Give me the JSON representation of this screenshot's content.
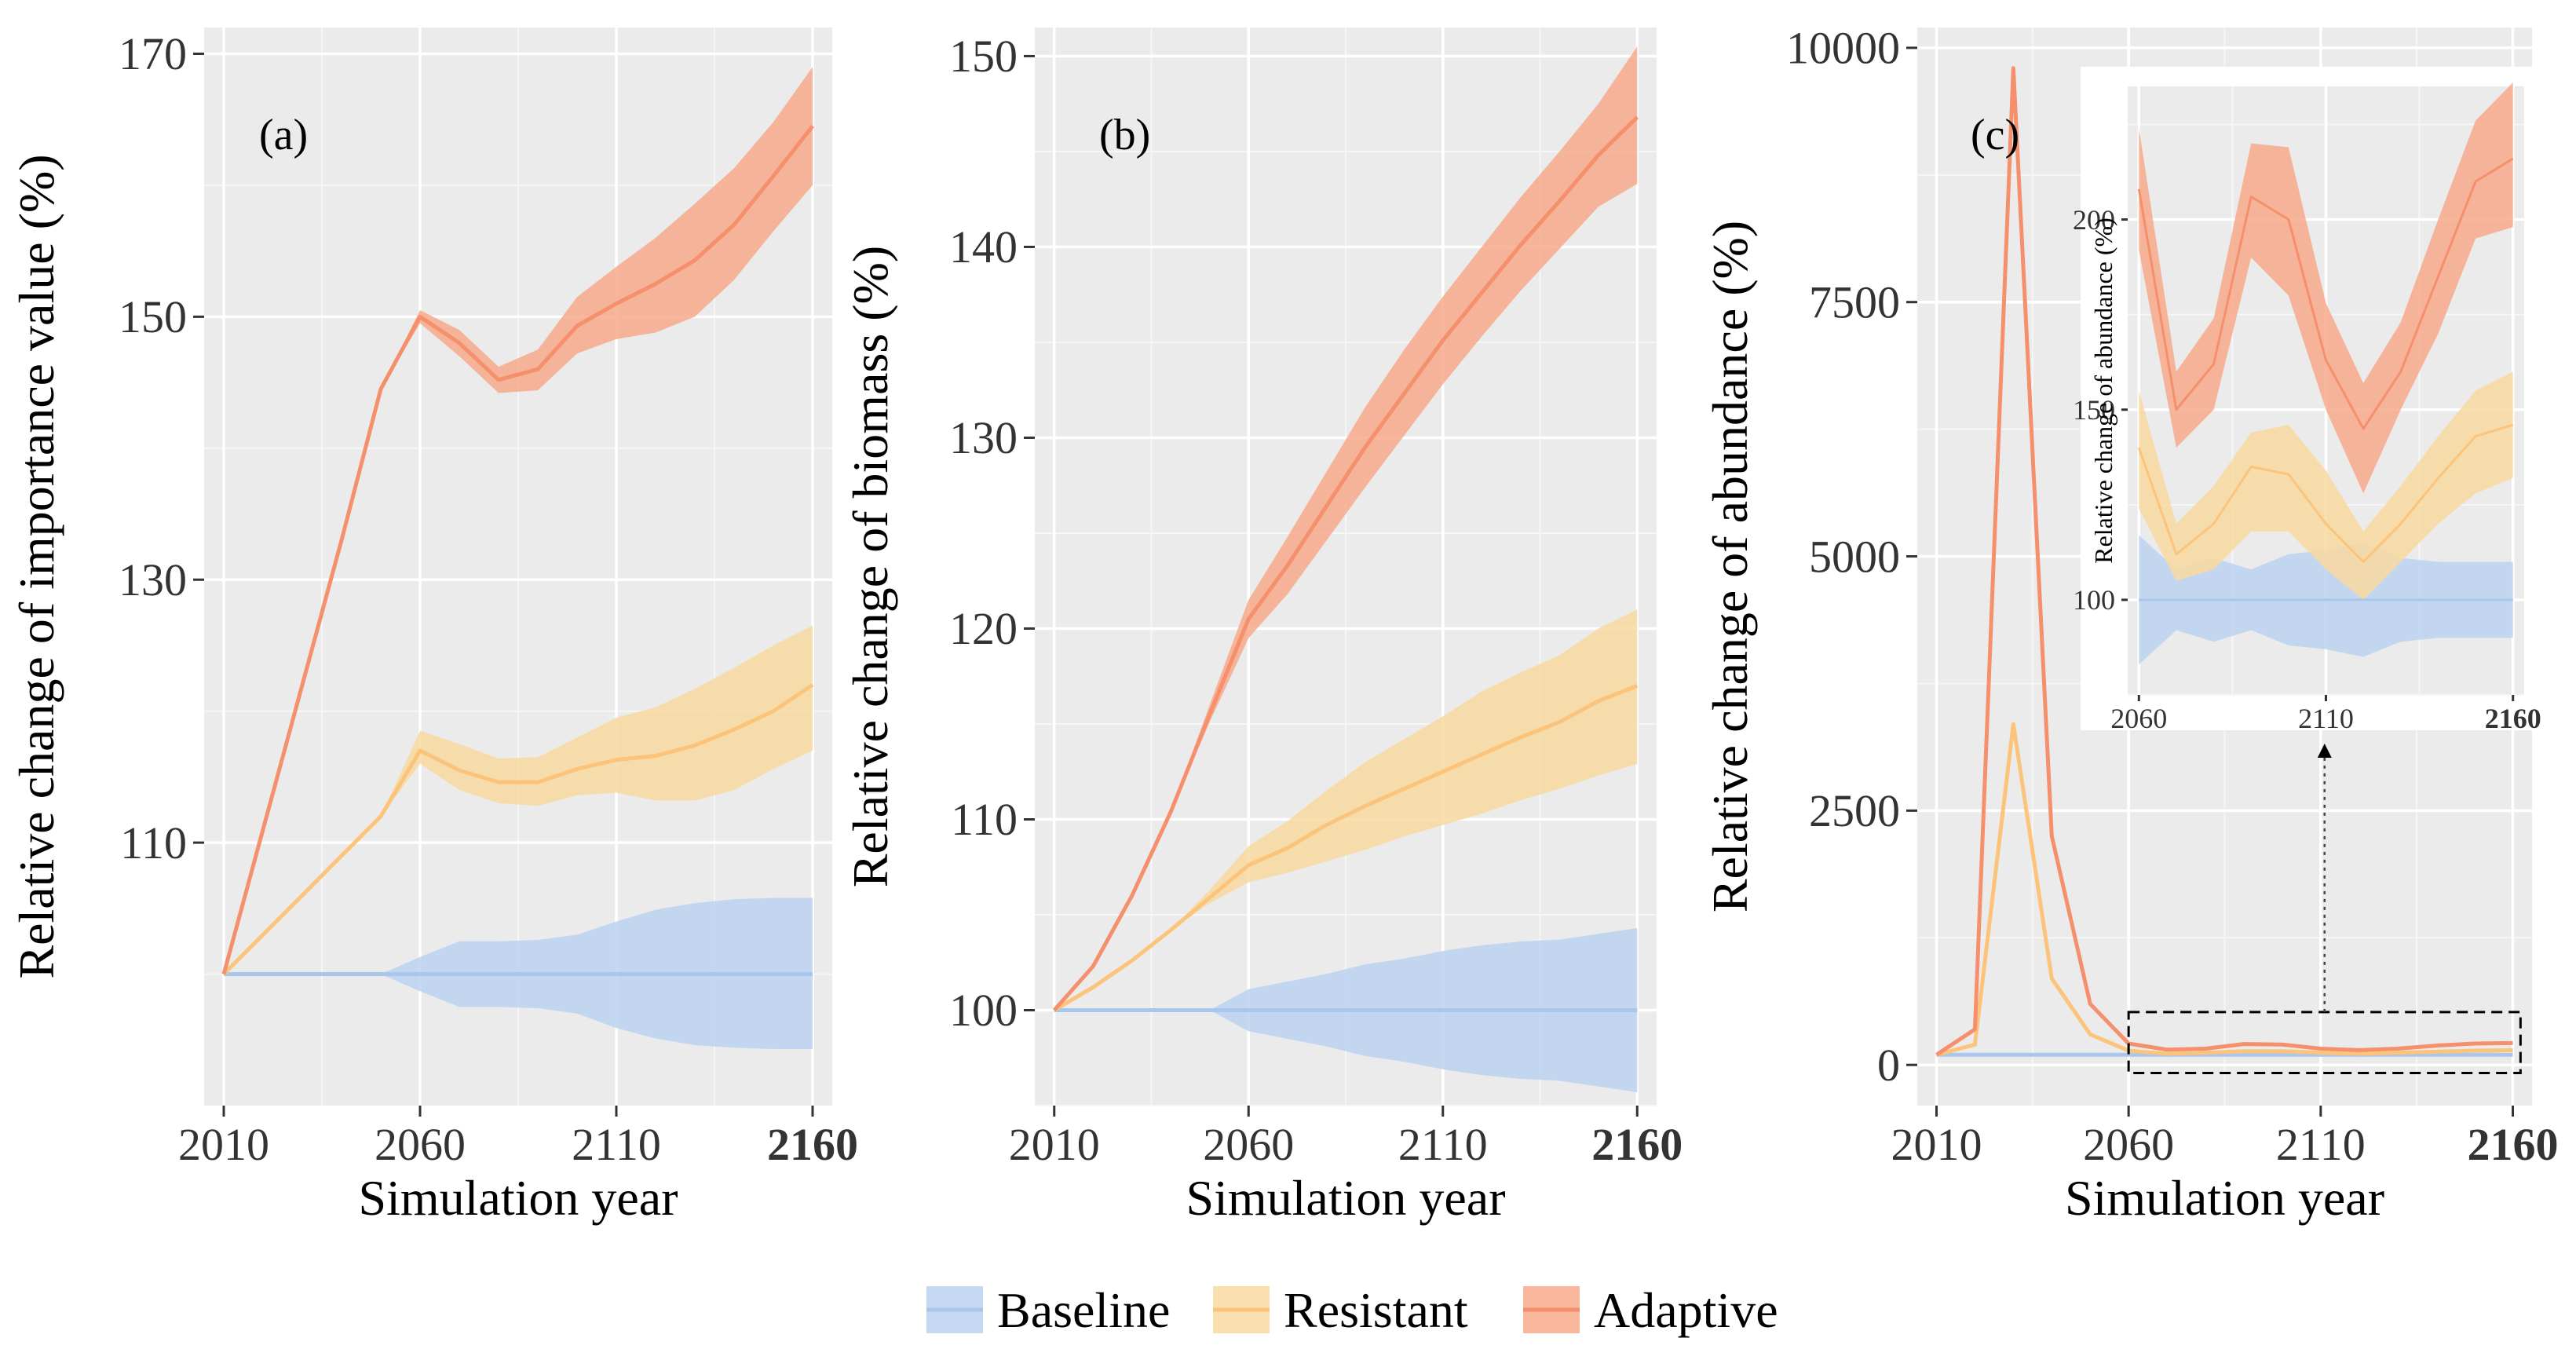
{
  "chart_data": [
    {
      "type": "line",
      "panel_label": "(a)",
      "xlabel": "Simulation year",
      "ylabel": "Relative change of importance value (%)",
      "x": [
        2010,
        2020,
        2030,
        2040,
        2050,
        2060,
        2070,
        2080,
        2090,
        2100,
        2110,
        2120,
        2130,
        2140,
        2150,
        2160
      ],
      "xlim": [
        2005,
        2165
      ],
      "ylim": [
        90,
        172
      ],
      "xticks": [
        2010,
        2060,
        2110,
        2160
      ],
      "yticks": [
        110,
        130,
        150,
        170
      ],
      "series": [
        {
          "name": "Baseline",
          "mean": [
            100,
            100,
            100,
            100,
            100,
            100,
            100,
            100,
            100,
            100,
            100,
            100,
            100,
            100,
            100,
            100
          ],
          "lower": [
            100,
            100,
            100,
            100,
            100,
            98.7,
            97.5,
            97.5,
            97.4,
            97,
            95.9,
            95.1,
            94.6,
            94.4,
            94.3,
            94.3
          ],
          "upper": [
            100,
            100,
            100,
            100,
            100,
            101.3,
            102.5,
            102.5,
            102.6,
            103,
            104,
            104.9,
            105.4,
            105.7,
            105.8,
            105.8
          ]
        },
        {
          "name": "Resistant",
          "mean": [
            100,
            103,
            106,
            109,
            112,
            117,
            115.5,
            114.6,
            114.6,
            115.6,
            116.3,
            116.6,
            117.4,
            118.6,
            120,
            122
          ],
          "lower": [
            100,
            103,
            106,
            109,
            112,
            116,
            114,
            113,
            112.8,
            113.6,
            113.8,
            113.2,
            113.2,
            114,
            115.6,
            117
          ],
          "upper": [
            100,
            103,
            106,
            109,
            112,
            118.5,
            117.5,
            116.4,
            116.5,
            118,
            119.5,
            120.3,
            121.7,
            123.3,
            125,
            126.5
          ]
        },
        {
          "name": "Adaptive",
          "mean": [
            100,
            111,
            122,
            133,
            144.5,
            150,
            148,
            145.2,
            146,
            149.3,
            151,
            152.5,
            154.3,
            157,
            160.7,
            164.5
          ],
          "lower": [
            100,
            111,
            122,
            133,
            144.5,
            149.5,
            147,
            144.2,
            144.4,
            147.2,
            148.3,
            148.8,
            150,
            152.8,
            156.5,
            160
          ],
          "upper": [
            100,
            111,
            122,
            133,
            144.5,
            150.5,
            149,
            146.2,
            147.5,
            151.5,
            153.8,
            156,
            158.6,
            161.3,
            164.8,
            169
          ]
        }
      ]
    },
    {
      "type": "line",
      "panel_label": "(b)",
      "xlabel": "Simulation year",
      "ylabel": "Relative change of biomass (%)",
      "x": [
        2010,
        2020,
        2030,
        2040,
        2050,
        2060,
        2070,
        2080,
        2090,
        2100,
        2110,
        2120,
        2130,
        2140,
        2150,
        2160
      ],
      "xlim": [
        2005,
        2165
      ],
      "ylim": [
        95,
        151.5
      ],
      "xticks": [
        2010,
        2060,
        2110,
        2160
      ],
      "yticks": [
        100,
        110,
        120,
        130,
        140,
        150
      ],
      "series": [
        {
          "name": "Baseline",
          "mean": [
            100,
            100,
            100,
            100,
            100,
            100,
            100,
            100,
            100,
            100,
            100,
            100,
            100,
            100,
            100,
            100
          ],
          "lower": [
            100,
            100,
            100,
            100,
            100,
            98.9,
            98.5,
            98.1,
            97.6,
            97.3,
            96.9,
            96.6,
            96.4,
            96.3,
            96,
            95.7
          ],
          "upper": [
            100,
            100,
            100,
            100,
            100,
            101.1,
            101.5,
            101.9,
            102.4,
            102.7,
            103.1,
            103.4,
            103.6,
            103.7,
            104,
            104.3
          ]
        },
        {
          "name": "Resistant",
          "mean": [
            100,
            101.2,
            102.6,
            104.2,
            105.9,
            107.6,
            108.5,
            109.7,
            110.7,
            111.6,
            112.5,
            113.4,
            114.3,
            115.1,
            116.2,
            117
          ],
          "lower": [
            100,
            101.2,
            102.6,
            104.2,
            105.6,
            106.7,
            107.2,
            107.8,
            108.4,
            109.1,
            109.7,
            110.3,
            111,
            111.6,
            112.3,
            112.9
          ],
          "upper": [
            100,
            101.2,
            102.6,
            104.2,
            106.3,
            108.6,
            109.9,
            111.5,
            113,
            114.2,
            115.4,
            116.7,
            117.7,
            118.6,
            120,
            121
          ]
        },
        {
          "name": "Adaptive",
          "mean": [
            100,
            102.3,
            106,
            110.4,
            115.5,
            120.5,
            123.3,
            126.4,
            129.5,
            132.3,
            135.1,
            137.6,
            140.1,
            142.4,
            144.8,
            146.8
          ],
          "lower": [
            100,
            102.3,
            106,
            110.4,
            115.1,
            119.5,
            121.8,
            124.6,
            127.4,
            130.1,
            132.8,
            135.3,
            137.7,
            139.9,
            142.1,
            143.3
          ],
          "upper": [
            100,
            102.3,
            106,
            110.4,
            116,
            121.5,
            124.8,
            128.2,
            131.6,
            134.6,
            137.4,
            140,
            142.6,
            145,
            147.5,
            150.5
          ]
        }
      ]
    },
    {
      "type": "line",
      "panel_label": "(c)",
      "xlabel": "Simulation year",
      "ylabel": "Relative change of abundance (%)",
      "x": [
        2010,
        2020,
        2030,
        2040,
        2050,
        2060,
        2070,
        2080,
        2090,
        2100,
        2110,
        2120,
        2130,
        2140,
        2150,
        2160
      ],
      "xlim": [
        2005,
        2165
      ],
      "ylim": [
        -400,
        10200
      ],
      "xticks": [
        2010,
        2060,
        2110,
        2160
      ],
      "yticks": [
        0,
        2500,
        5000,
        7500,
        10000
      ],
      "series": [
        {
          "name": "Baseline",
          "mean": [
            100,
            100,
            100,
            100,
            100,
            100,
            100,
            100,
            100,
            100,
            100,
            100,
            100,
            100,
            100,
            100
          ]
        },
        {
          "name": "Resistant",
          "mean": [
            100,
            200,
            3350,
            850,
            300,
            140,
            110,
            120,
            135,
            135,
            120,
            110,
            120,
            130,
            140,
            145
          ]
        },
        {
          "name": "Adaptive",
          "mean": [
            100,
            350,
            9800,
            2250,
            600,
            210,
            150,
            160,
            205,
            200,
            160,
            145,
            160,
            190,
            210,
            215
          ]
        }
      ],
      "inset": {
        "ylabel": "Relative change of abundance (%)",
        "x": [
          2060,
          2070,
          2080,
          2090,
          2100,
          2110,
          2120,
          2130,
          2140,
          2150,
          2160
        ],
        "xlim": [
          2057,
          2163
        ],
        "ylim": [
          75,
          235
        ],
        "xticks": [
          2060,
          2110,
          2160
        ],
        "yticks": [
          100,
          150,
          200
        ],
        "series": [
          {
            "name": "Baseline",
            "mean": [
              100,
              100,
              100,
              100,
              100,
              100,
              100,
              100,
              100,
              100,
              100
            ],
            "lower": [
              83,
              92,
              89,
              92,
              88,
              87,
              85,
              89,
              90,
              90,
              90
            ],
            "upper": [
              117,
              108,
              111,
              108,
              112,
              113,
              115,
              111,
              110,
              110,
              110
            ]
          },
          {
            "name": "Resistant",
            "mean": [
              140,
              112,
              120,
              135,
              133,
              120,
              110,
              120,
              132,
              143,
              146
            ],
            "lower": [
              124,
              105,
              108,
              118,
              118,
              108,
              100,
              110,
              120,
              128,
              132
            ],
            "upper": [
              155,
              120,
              130,
              144,
              146,
              134,
              118,
              130,
              143,
              155,
              160
            ]
          },
          {
            "name": "Adaptive",
            "mean": [
              208,
              150,
              162,
              206,
              200,
              163,
              145,
              160,
              185,
              210,
              216
            ],
            "lower": [
              192,
              140,
              150,
              190,
              180,
              150,
              128,
              150,
              170,
              195,
              198
            ],
            "upper": [
              224,
              160,
              174,
              220,
              219,
              178,
              157,
              173,
              200,
              226,
              236
            ]
          }
        ]
      }
    }
  ],
  "legend": [
    {
      "name": "Baseline",
      "color": "#a9c6ed"
    },
    {
      "name": "Resistant",
      "color": "#fbd190"
    },
    {
      "name": "Adaptive",
      "color": "#f5a184"
    }
  ],
  "colors": {
    "panel_bg": "#ebebeb",
    "grid_major": "#ffffff",
    "Baseline": {
      "line": "#a9c6ed",
      "band": "#bcd2f1"
    },
    "Resistant": {
      "line": "#fbc47a",
      "band": "#f9d9a0"
    },
    "Adaptive": {
      "line": "#f58f6c",
      "band": "#f7a98b"
    }
  }
}
